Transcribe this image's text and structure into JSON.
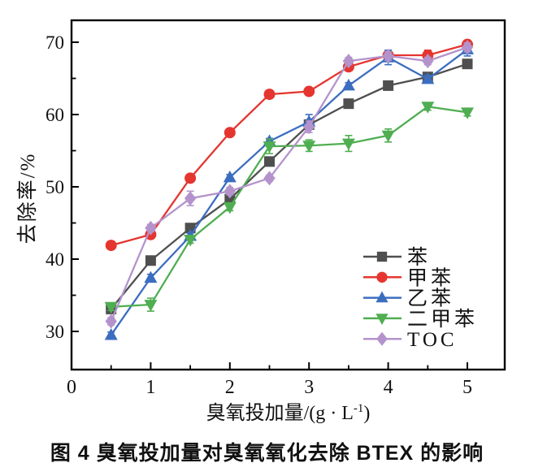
{
  "figure": {
    "ylabel": "去除率/%",
    "xlabel": {
      "text": "臭氧投加量/(g·L⁻¹)",
      "base": "臭氧投加量/(g · L",
      "sup": "-1",
      "close": ")"
    },
    "caption": "图 4  臭氧投加量对臭氧氧化去除 BTEX 的影响"
  },
  "chart_data": {
    "type": "line",
    "title": "",
    "xlabel": "臭氧投加量/(g·L⁻¹)",
    "ylabel": "去除率/%",
    "x": [
      0.5,
      1,
      1.5,
      2,
      2.5,
      3,
      3.5,
      4,
      4.5,
      5
    ],
    "xlim": [
      0,
      5.47
    ],
    "ylim": [
      24.7,
      73
    ],
    "x_major_ticks": [
      0,
      1,
      2,
      3,
      4,
      5
    ],
    "x_minor_ticks": [
      0.5,
      1.5,
      2.5,
      3.5,
      4.5
    ],
    "y_major_ticks": [
      30,
      40,
      50,
      60,
      70
    ],
    "y_minor_ticks": [
      35,
      45,
      55,
      65
    ],
    "grid": false,
    "legend_position": "inside-lower-right",
    "series": [
      {
        "name": "苯",
        "name_en": "benzene",
        "color": "#4f4f4f",
        "marker": "square",
        "values": [
          33.1,
          39.8,
          44.3,
          48.3,
          53.5,
          58.6,
          61.5,
          64.0,
          65.2,
          67.0
        ],
        "errors": [
          0.4,
          0.4,
          0.4,
          0.4,
          0.5,
          0.6,
          0.4,
          0.5,
          0.4,
          0.4
        ]
      },
      {
        "name": "甲苯",
        "name_en": "toluene",
        "color": "#e5352f",
        "marker": "circle",
        "values": [
          41.9,
          43.4,
          51.2,
          57.5,
          62.8,
          63.2,
          66.6,
          68.2,
          68.2,
          69.7
        ],
        "errors": [
          0.4,
          0.5,
          0.4,
          0.4,
          0.4,
          0.4,
          0.5,
          0.6,
          0.7,
          0.5
        ]
      },
      {
        "name": "乙苯",
        "name_en": "ethylbenzene",
        "color": "#3c6ebf",
        "marker": "triangle-up",
        "values": [
          29.5,
          37.4,
          43.2,
          51.3,
          56.3,
          59.0,
          64.0,
          67.9,
          64.9,
          69.0
        ],
        "errors": [
          0.4,
          0.5,
          0.4,
          0.4,
          0.4,
          1.0,
          0.4,
          1.0,
          0.5,
          0.9
        ]
      },
      {
        "name": "二甲苯",
        "name_en": "xylene",
        "color": "#4fae51",
        "marker": "triangle-down",
        "values": [
          33.4,
          33.7,
          42.7,
          47.2,
          55.6,
          55.7,
          56.0,
          57.1,
          61.1,
          60.3
        ],
        "errors": [
          0.5,
          0.9,
          0.5,
          0.5,
          1.0,
          0.8,
          1.1,
          0.9,
          0.5,
          0.5
        ]
      },
      {
        "name": "TOC",
        "name_en": "toc",
        "color": "#b493cc",
        "marker": "diamond",
        "values": [
          31.4,
          44.3,
          48.4,
          49.4,
          51.2,
          58.3,
          67.4,
          68.1,
          67.4,
          69.3
        ],
        "errors": [
          0.5,
          0.5,
          1.0,
          0.5,
          0.4,
          0.8,
          0.5,
          0.6,
          0.5,
          0.6
        ]
      }
    ]
  }
}
